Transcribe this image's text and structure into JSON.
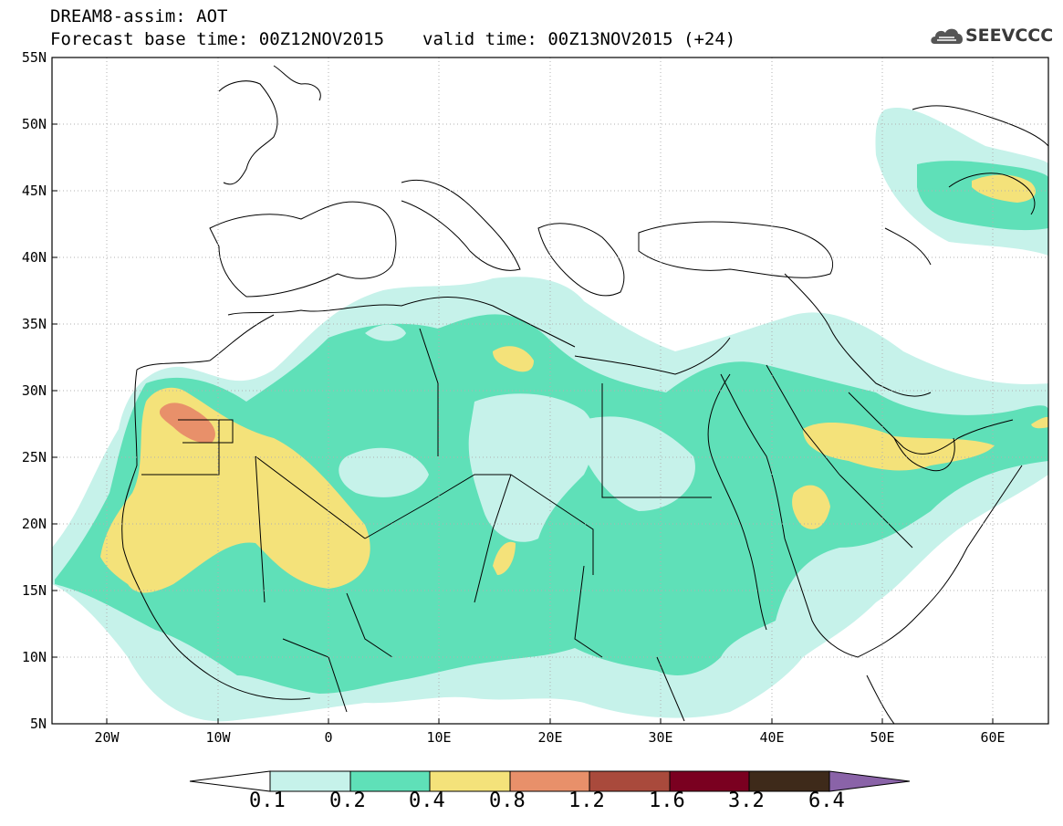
{
  "header": {
    "title": "DREAM8-assim: AOT",
    "base_time": "Forecast base time: 00Z12NOV2015",
    "valid_time": "valid time: 00Z13NOV2015 (+24)"
  },
  "logo": {
    "text": "SEEVCCC",
    "icon": "cloud-icon"
  },
  "map": {
    "region": "North Africa, Mediterranean and Middle East",
    "lon_range": [
      -25,
      65
    ],
    "lat_range": [
      5,
      55
    ],
    "lat_labels": [
      "55N",
      "50N",
      "45N",
      "40N",
      "35N",
      "30N",
      "25N",
      "20N",
      "15N",
      "10N",
      "5N"
    ],
    "lon_labels": [
      "20W",
      "10W",
      "0",
      "10E",
      "20E",
      "30E",
      "40E",
      "50E",
      "60E"
    ],
    "grid": "dotted"
  },
  "colorbar": {
    "levels": [
      "0.1",
      "0.2",
      "0.4",
      "0.8",
      "1.2",
      "1.6",
      "3.2",
      "6.4"
    ],
    "colors": [
      "#c6f2ea",
      "#5fe0b8",
      "#f4e27a",
      "#e8906a",
      "#a94a3c",
      "#7a0020",
      "#3e2a1a",
      "#8a63a8"
    ],
    "under_color": "#ffffff"
  },
  "colors": {
    "c01": "#c6f2ea",
    "c02": "#5fe0b8",
    "c04": "#f4e27a",
    "c08": "#e8906a"
  }
}
